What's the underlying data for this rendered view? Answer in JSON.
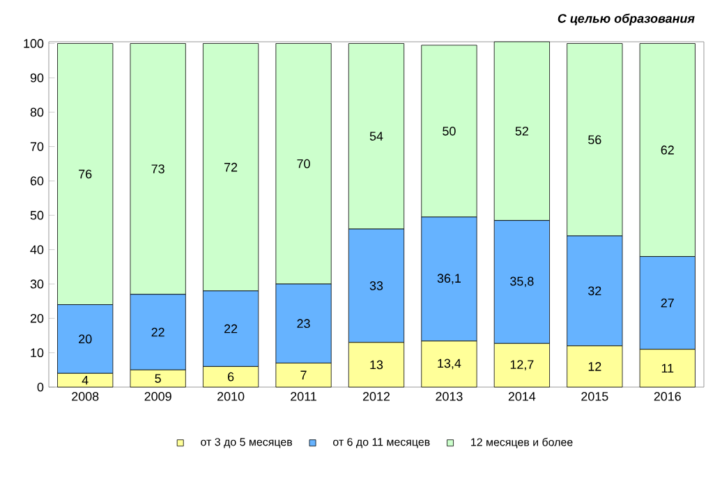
{
  "chart_data": {
    "type": "bar",
    "stacked": true,
    "title": "С целью образования",
    "categories": [
      "2008",
      "2009",
      "2010",
      "2011",
      "2012",
      "2013",
      "2014",
      "2015",
      "2016"
    ],
    "series": [
      {
        "name": "от 3 до 5 месяцев",
        "color": "#ffff99",
        "values": [
          4,
          5,
          6,
          7,
          13,
          13.4,
          12.7,
          12,
          11
        ],
        "value_labels": [
          "4",
          "5",
          "6",
          "7",
          "13",
          "13,4",
          "12,7",
          "12",
          "11"
        ]
      },
      {
        "name": "от 6 до 11 месяцев",
        "color": "#66b3ff",
        "values": [
          20,
          22,
          22,
          23,
          33,
          36.1,
          35.8,
          32,
          27
        ],
        "value_labels": [
          "20",
          "22",
          "22",
          "23",
          "33",
          "36,1",
          "35,8",
          "32",
          "27"
        ]
      },
      {
        "name": "12 месяцев и более",
        "color": "#ccffcc",
        "values": [
          76,
          73,
          72,
          70,
          54,
          50,
          52,
          56,
          62
        ],
        "value_labels": [
          "76",
          "73",
          "72",
          "70",
          "54",
          "50",
          "52",
          "56",
          "62"
        ]
      }
    ],
    "ylim": [
      0,
      100.5
    ],
    "yticks": [
      0,
      10,
      20,
      30,
      40,
      50,
      60,
      70,
      80,
      90,
      100
    ],
    "legend": "bottom"
  }
}
